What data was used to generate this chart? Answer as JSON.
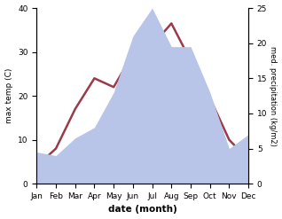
{
  "months": [
    "Jan",
    "Feb",
    "Mar",
    "Apr",
    "May",
    "Jun",
    "Jul",
    "Aug",
    "Sep",
    "Oct",
    "Nov",
    "Dec"
  ],
  "month_positions": [
    0,
    1,
    2,
    3,
    4,
    5,
    6,
    7,
    8,
    9,
    10,
    11
  ],
  "temperature": [
    4.0,
    8.0,
    17.0,
    24.0,
    22.0,
    29.5,
    31.5,
    36.5,
    28.0,
    19.5,
    10.0,
    5.5
  ],
  "precipitation": [
    4.5,
    4.0,
    6.5,
    8.0,
    13.0,
    21.0,
    25.0,
    19.5,
    19.5,
    13.0,
    5.0,
    7.0
  ],
  "temp_color": "#9b3a4a",
  "precip_fill_color": "#b8c4e8",
  "temp_ylim": [
    0,
    40
  ],
  "precip_ylim": [
    0,
    25
  ],
  "temp_yticks": [
    0,
    10,
    20,
    30,
    40
  ],
  "precip_yticks": [
    0,
    5,
    10,
    15,
    20,
    25
  ],
  "xlabel": "date (month)",
  "ylabel_left": "max temp (C)",
  "ylabel_right": "med. precipitation (kg/m2)",
  "fig_width": 3.18,
  "fig_height": 2.47,
  "dpi": 100
}
